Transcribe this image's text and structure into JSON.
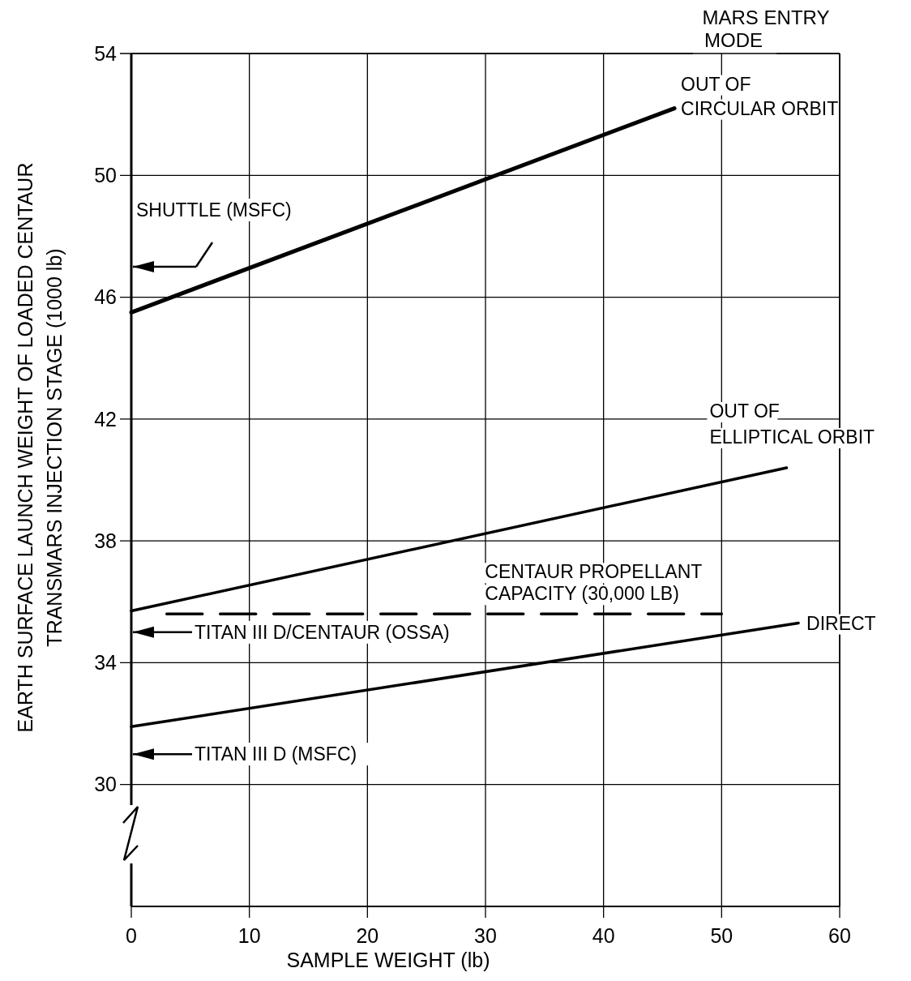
{
  "chart_data": {
    "type": "line",
    "xlabel": "SAMPLE WEIGHT (lb)",
    "ylabel": "EARTH SURFACE LAUNCH WEIGHT OF LOADED CENTAUR\nTRANSMARS INJECTION STAGE (1000 lb)",
    "legend_title": "MARS ENTRY MODE",
    "xlim": [
      0,
      60
    ],
    "xticks": [
      0,
      10,
      20,
      30,
      40,
      50,
      60
    ],
    "ylim": [
      26,
      54
    ],
    "yticks": [
      30,
      34,
      38,
      42,
      46,
      50,
      54
    ],
    "grid": true,
    "line_style": "solid",
    "marker": "none",
    "series": [
      {
        "name": "OUT OF\nCIRCULAR ORBIT",
        "color": "#000000",
        "x": [
          0,
          46
        ],
        "values": [
          45.5,
          52.2
        ]
      },
      {
        "name": "OUT OF\nELLIPTICAL ORBIT",
        "color": "#000000",
        "x": [
          0,
          55.5
        ],
        "values": [
          35.7,
          40.4
        ]
      },
      {
        "name": "CENTAUR PROPELLANT\nCAPACITY (30,000 LB)",
        "color": "#000000",
        "x": [
          3,
          50
        ],
        "values": [
          35.6,
          35.6
        ],
        "line_style": "dashed"
      },
      {
        "name": "DIRECT",
        "color": "#000000",
        "x": [
          0,
          56.5
        ],
        "values": [
          31.9,
          35.3
        ]
      }
    ],
    "ref_lines": [
      {
        "axis": "y",
        "value": 47,
        "label": "SHUTTLE (MSFC)"
      },
      {
        "axis": "y",
        "value": 35,
        "label": "TITAN III D/CENTAUR (OSSA)"
      },
      {
        "axis": "y",
        "value": 31,
        "label": "TITAN III D (MSFC)"
      }
    ]
  }
}
